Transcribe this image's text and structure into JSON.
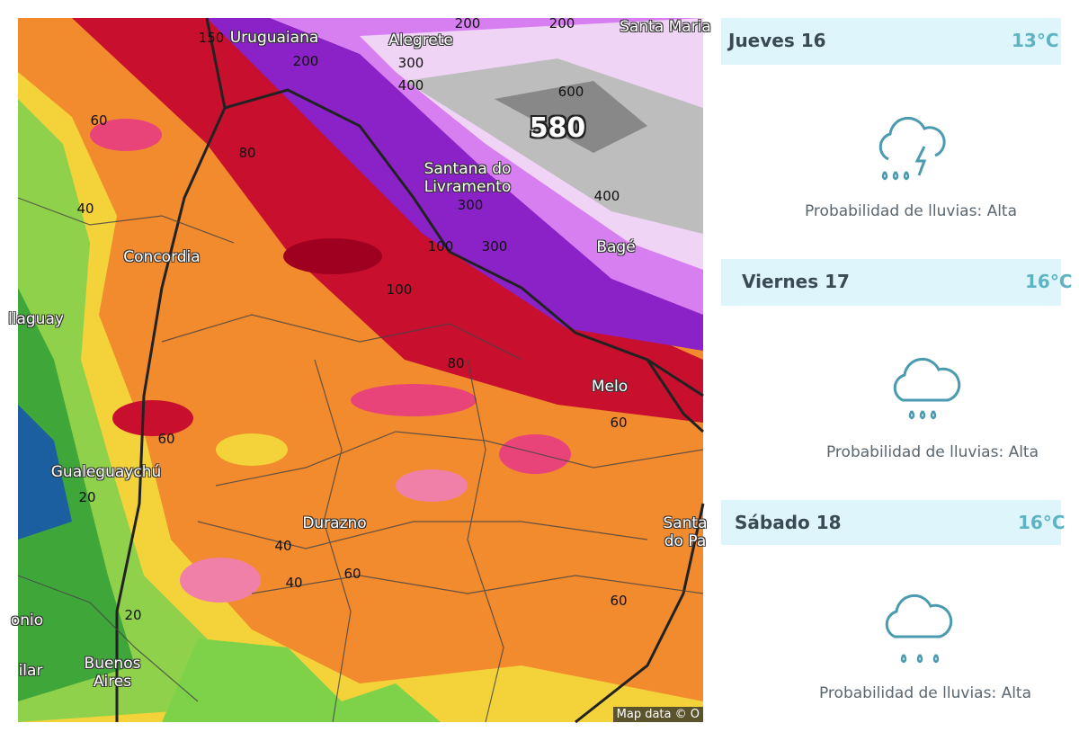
{
  "map": {
    "places": [
      {
        "label": "Uruguaiana"
      },
      {
        "label": "Alegrete"
      },
      {
        "label": "Santa Maria"
      },
      {
        "label": "Santana do Livramento"
      },
      {
        "label": "Bagé"
      },
      {
        "label": "Concordia"
      },
      {
        "label": "llaguay"
      },
      {
        "label": "Melo"
      },
      {
        "label": "Gualeguaychú"
      },
      {
        "label": "Durazno"
      },
      {
        "label": "Santa do Pa"
      },
      {
        "label": "Buenos Aires"
      },
      {
        "label": "onio"
      },
      {
        "label": "ilar"
      }
    ],
    "big_label": 580,
    "contours": [
      150,
      200,
      200,
      200,
      300,
      400,
      600,
      400,
      300,
      300,
      100,
      100,
      80,
      60,
      80,
      40,
      60,
      60,
      20,
      40,
      40,
      60,
      60,
      20
    ],
    "attribution": "Map data © O"
  },
  "forecast": [
    {
      "day": "Jueves 16",
      "temp": "13°C",
      "rain": "Probabilidad de lluvias: Alta"
    },
    {
      "day": "Viernes 17",
      "temp": "16°C",
      "rain": "Probabilidad de lluvias: Alta"
    },
    {
      "day": "Sábado 18",
      "temp": "16°C",
      "rain": "Probabilidad de lluvias: Alta"
    }
  ]
}
